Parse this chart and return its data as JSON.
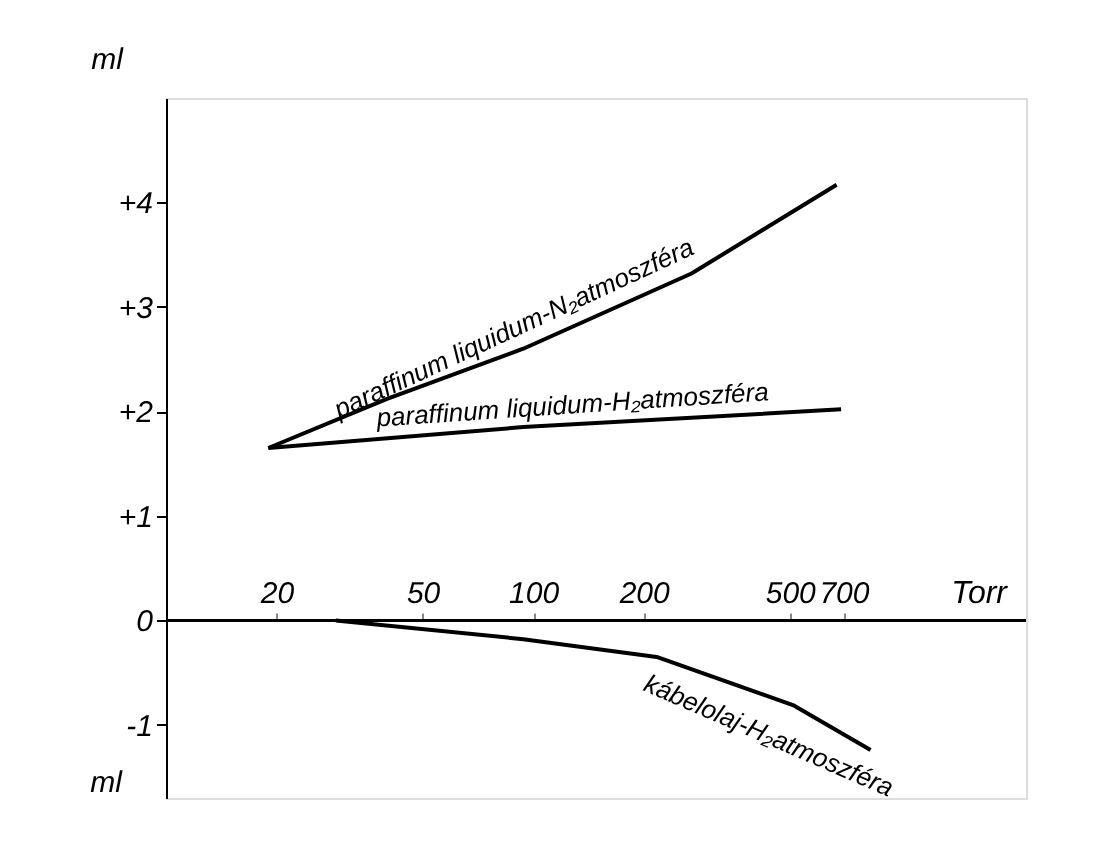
{
  "chart_data": {
    "type": "line",
    "xlabel": "Torr",
    "ylabel": "ml",
    "log": "x",
    "grid": false,
    "marker": "none",
    "line_style": "solid",
    "xlim": [
      10,
      2200
    ],
    "xticks": [
      20,
      50,
      100,
      200,
      500,
      700
    ],
    "ylim": [
      -1.7,
      5
    ],
    "yticks": [
      {
        "value": 4,
        "label": "+4"
      },
      {
        "value": 3,
        "label": "+3"
      },
      {
        "value": 2,
        "label": "+2"
      },
      {
        "value": 1,
        "label": "+1"
      },
      {
        "value": 0,
        "label": "0"
      },
      {
        "value": -1,
        "label": "-1"
      }
    ],
    "series": [
      {
        "name": "paraffinum liquidum-N₂atmoszféra",
        "color": "#000000",
        "x": [
          19,
          40,
          94,
          270,
          671
        ],
        "values": [
          1.65,
          2.12,
          2.6,
          3.32,
          4.17
        ]
      },
      {
        "name": "paraffinum liquidum-H₂atmoszféra",
        "color": "#000000",
        "x": [
          19,
          94,
          690
        ],
        "values": [
          1.65,
          1.85,
          2.02
        ]
      },
      {
        "name": "kábelolaj-H₂atmoszféra",
        "color": "#000000",
        "x": [
          29,
          94,
          217,
          510,
          830
        ],
        "values": [
          0,
          -0.18,
          -0.35,
          -0.81,
          -1.24
        ]
      }
    ],
    "annotations": [
      "ml"
    ]
  }
}
